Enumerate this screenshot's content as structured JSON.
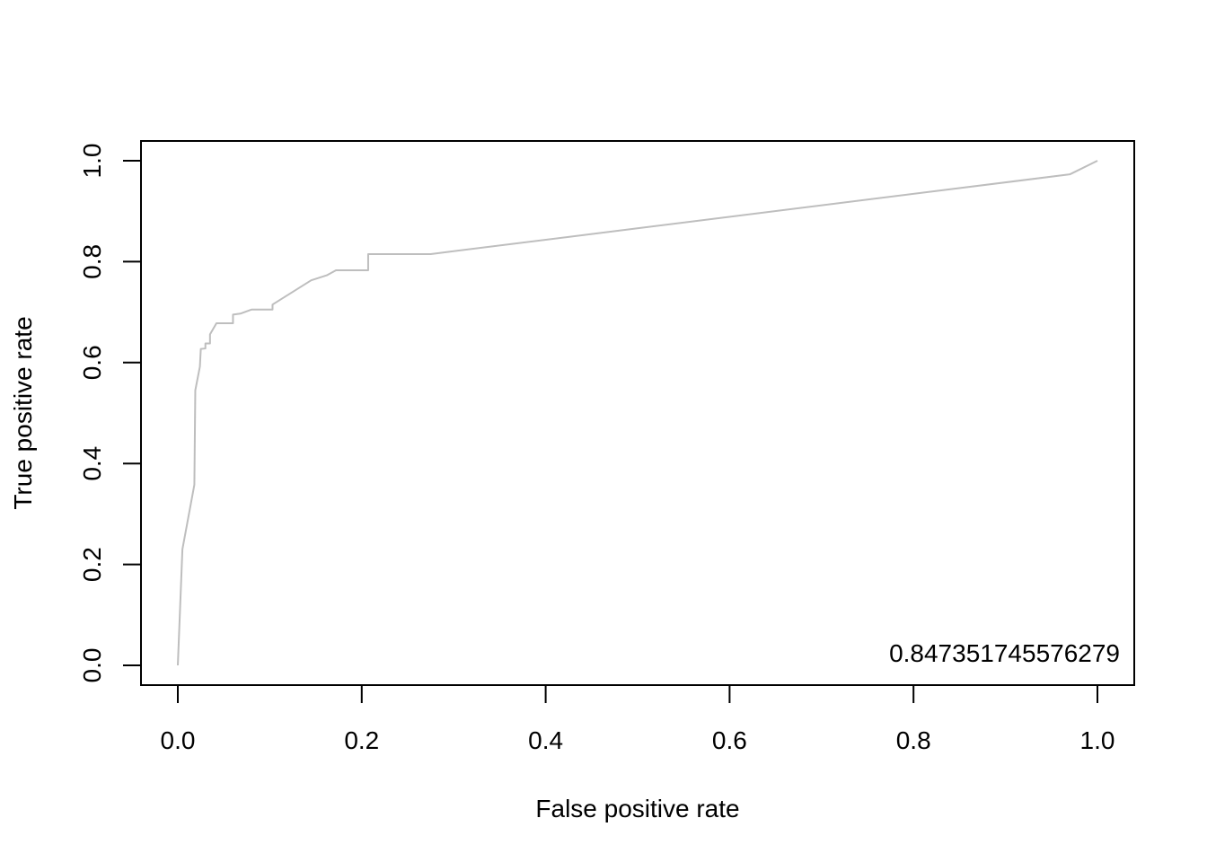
{
  "chart_data": {
    "type": "line",
    "title": "",
    "xlabel": "False positive rate",
    "ylabel": "True positive rate",
    "xlim": [
      0,
      1
    ],
    "ylim": [
      0,
      1
    ],
    "x_ticks": [
      "0.0",
      "0.2",
      "0.4",
      "0.6",
      "0.8",
      "1.0"
    ],
    "y_ticks": [
      "0.0",
      "0.2",
      "0.4",
      "0.6",
      "0.8",
      "1.0"
    ],
    "grid": false,
    "legend": "none",
    "annotation": "0.847351745576279",
    "series": [
      {
        "color": "#bebebe",
        "points": [
          [
            0.0,
            0.0
          ],
          [
            0.005,
            0.23
          ],
          [
            0.018,
            0.358
          ],
          [
            0.019,
            0.545
          ],
          [
            0.024,
            0.592
          ],
          [
            0.025,
            0.627
          ],
          [
            0.03,
            0.628
          ],
          [
            0.03,
            0.638
          ],
          [
            0.035,
            0.638
          ],
          [
            0.035,
            0.656
          ],
          [
            0.042,
            0.678
          ],
          [
            0.06,
            0.678
          ],
          [
            0.06,
            0.695
          ],
          [
            0.068,
            0.697
          ],
          [
            0.08,
            0.705
          ],
          [
            0.103,
            0.705
          ],
          [
            0.103,
            0.715
          ],
          [
            0.145,
            0.763
          ],
          [
            0.162,
            0.773
          ],
          [
            0.172,
            0.783
          ],
          [
            0.207,
            0.783
          ],
          [
            0.207,
            0.815
          ],
          [
            0.275,
            0.815
          ],
          [
            0.97,
            0.973
          ],
          [
            1.0,
            1.0
          ]
        ]
      }
    ]
  }
}
